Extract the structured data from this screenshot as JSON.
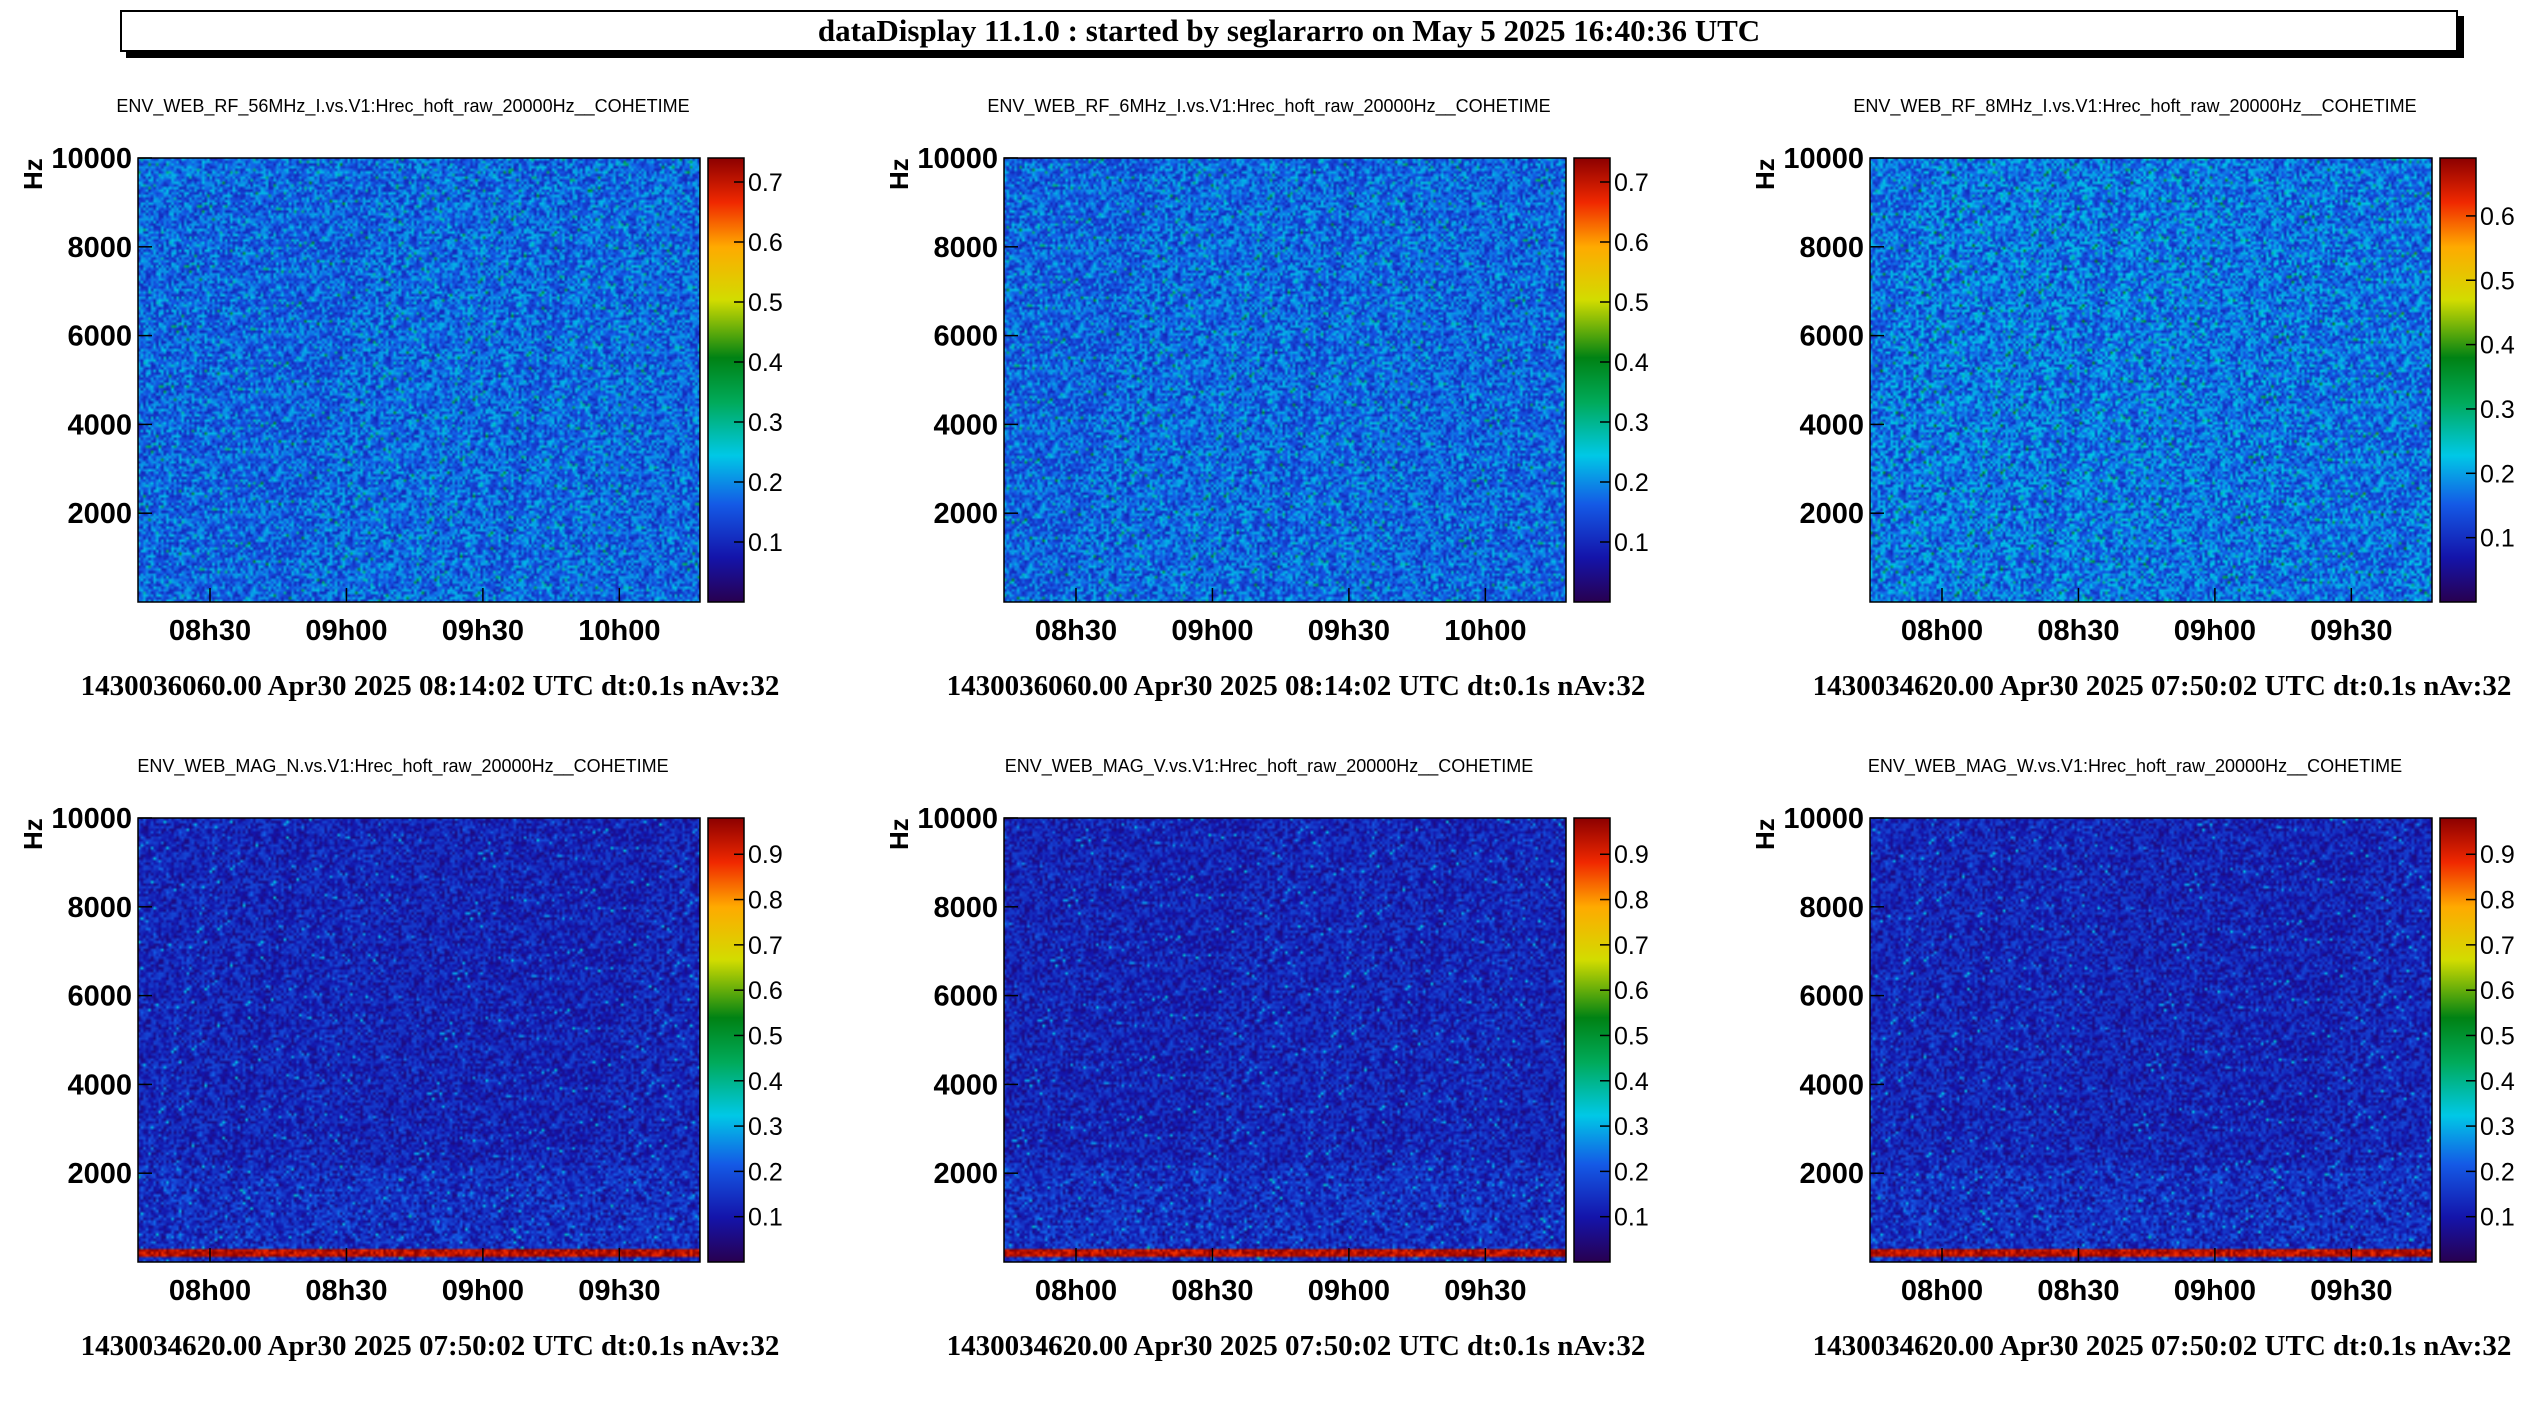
{
  "header": {
    "title": "dataDisplay 11.1.0 : started by seglararro on May  5 2025 16:40:36 UTC"
  },
  "colors": {
    "palette": "rainbow (purple-blue-cyan-green-yellow-red)",
    "background": "#ffffff"
  },
  "chart_data": [
    {
      "type": "heatmap",
      "title": "ENV_WEB_RF_56MHz_I.vs.V1:Hrec_hoft_raw_20000Hz__COHETIME",
      "ylabel": "Hz",
      "yticks": [
        "10000",
        "8000",
        "6000",
        "4000",
        "2000"
      ],
      "ylim": [
        0,
        10000
      ],
      "xticks": [
        "08h30",
        "09h00",
        "09h30",
        "10h00"
      ],
      "colorbar_ticks": [
        "0.7",
        "0.6",
        "0.5",
        "0.4",
        "0.3",
        "0.2",
        "0.1"
      ],
      "zlim": [
        0,
        0.74
      ],
      "footer": "1430036060.00 Apr30 2025 08:14:02 UTC dt:0.1s nAv:32",
      "mean_level": 0.15,
      "low_freq_line": false
    },
    {
      "type": "heatmap",
      "title": "ENV_WEB_RF_6MHz_I.vs.V1:Hrec_hoft_raw_20000Hz__COHETIME",
      "ylabel": "Hz",
      "yticks": [
        "10000",
        "8000",
        "6000",
        "4000",
        "2000"
      ],
      "ylim": [
        0,
        10000
      ],
      "xticks": [
        "08h30",
        "09h00",
        "09h30",
        "10h00"
      ],
      "colorbar_ticks": [
        "0.7",
        "0.6",
        "0.5",
        "0.4",
        "0.3",
        "0.2",
        "0.1"
      ],
      "zlim": [
        0,
        0.74
      ],
      "footer": "1430036060.00 Apr30 2025 08:14:02 UTC dt:0.1s nAv:32",
      "mean_level": 0.15,
      "low_freq_line": false
    },
    {
      "type": "heatmap",
      "title": "ENV_WEB_RF_8MHz_I.vs.V1:Hrec_hoft_raw_20000Hz__COHETIME",
      "ylabel": "Hz",
      "yticks": [
        "10000",
        "8000",
        "6000",
        "4000",
        "2000"
      ],
      "ylim": [
        0,
        10000
      ],
      "xticks": [
        "08h00",
        "08h30",
        "09h00",
        "09h30"
      ],
      "colorbar_ticks": [
        "0.6",
        "0.5",
        "0.4",
        "0.3",
        "0.2",
        "0.1"
      ],
      "zlim": [
        0,
        0.69
      ],
      "footer": "1430034620.00 Apr30 2025 07:50:02 UTC dt:0.1s nAv:32",
      "mean_level": 0.15,
      "low_freq_line": false
    },
    {
      "type": "heatmap",
      "title": "ENV_WEB_MAG_N.vs.V1:Hrec_hoft_raw_20000Hz__COHETIME",
      "ylabel": "Hz",
      "yticks": [
        "10000",
        "8000",
        "6000",
        "4000",
        "2000"
      ],
      "ylim": [
        0,
        10000
      ],
      "xticks": [
        "08h00",
        "08h30",
        "09h00",
        "09h30"
      ],
      "colorbar_ticks": [
        "0.9",
        "0.8",
        "0.7",
        "0.6",
        "0.5",
        "0.4",
        "0.3",
        "0.2",
        "0.1"
      ],
      "zlim": [
        0,
        0.98
      ],
      "footer": "1430034620.00 Apr30 2025 07:50:02 UTC dt:0.1s nAv:32",
      "mean_level": 0.1,
      "low_freq_line": true
    },
    {
      "type": "heatmap",
      "title": "ENV_WEB_MAG_V.vs.V1:Hrec_hoft_raw_20000Hz__COHETIME",
      "ylabel": "Hz",
      "yticks": [
        "10000",
        "8000",
        "6000",
        "4000",
        "2000"
      ],
      "ylim": [
        0,
        10000
      ],
      "xticks": [
        "08h00",
        "08h30",
        "09h00",
        "09h30"
      ],
      "colorbar_ticks": [
        "0.9",
        "0.8",
        "0.7",
        "0.6",
        "0.5",
        "0.4",
        "0.3",
        "0.2",
        "0.1"
      ],
      "zlim": [
        0,
        0.98
      ],
      "footer": "1430034620.00 Apr30 2025 07:50:02 UTC dt:0.1s nAv:32",
      "mean_level": 0.1,
      "low_freq_line": true
    },
    {
      "type": "heatmap",
      "title": "ENV_WEB_MAG_W.vs.V1:Hrec_hoft_raw_20000Hz__COHETIME",
      "ylabel": "Hz",
      "yticks": [
        "10000",
        "8000",
        "6000",
        "4000",
        "2000"
      ],
      "ylim": [
        0,
        10000
      ],
      "xticks": [
        "08h00",
        "08h30",
        "09h00",
        "09h30"
      ],
      "colorbar_ticks": [
        "0.9",
        "0.8",
        "0.7",
        "0.6",
        "0.5",
        "0.4",
        "0.3",
        "0.2",
        "0.1"
      ],
      "zlim": [
        0,
        0.98
      ],
      "footer": "1430034620.00 Apr30 2025 07:50:02 UTC dt:0.1s nAv:32",
      "mean_level": 0.1,
      "low_freq_line": true
    }
  ]
}
